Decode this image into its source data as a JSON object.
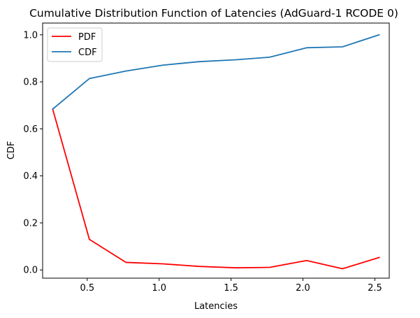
{
  "chart_data": {
    "type": "line",
    "title": "Cumulative Distribution Function of Latencies (AdGuard-1 RCODE 0)",
    "xlabel": "Latencies",
    "ylabel": "CDF",
    "xlim": [
      0.19,
      2.6
    ],
    "ylim": [
      -0.035,
      1.05
    ],
    "xticks": [
      0.5,
      1.0,
      1.5,
      2.0,
      2.5
    ],
    "yticks": [
      0.0,
      0.2,
      0.4,
      0.6,
      0.8,
      1.0
    ],
    "xtick_labels": [
      "0.5",
      "1.0",
      "1.5",
      "2.0",
      "2.5"
    ],
    "ytick_labels": [
      "0.0",
      "0.2",
      "0.4",
      "0.6",
      "0.8",
      "1.0"
    ],
    "grid": false,
    "legend_position": "top-left",
    "x": [
      0.26,
      0.515,
      0.77,
      1.025,
      1.28,
      1.535,
      1.77,
      2.025,
      2.275,
      2.53
    ],
    "series": [
      {
        "name": "PDF",
        "color": "#ff0000",
        "values": [
          0.684,
          0.13,
          0.032,
          0.026,
          0.015,
          0.009,
          0.011,
          0.04,
          0.005,
          0.053
        ]
      },
      {
        "name": "CDF",
        "color": "#1f77b4",
        "values": [
          0.684,
          0.814,
          0.846,
          0.871,
          0.886,
          0.894,
          0.905,
          0.945,
          0.949,
          1.0
        ]
      }
    ]
  }
}
